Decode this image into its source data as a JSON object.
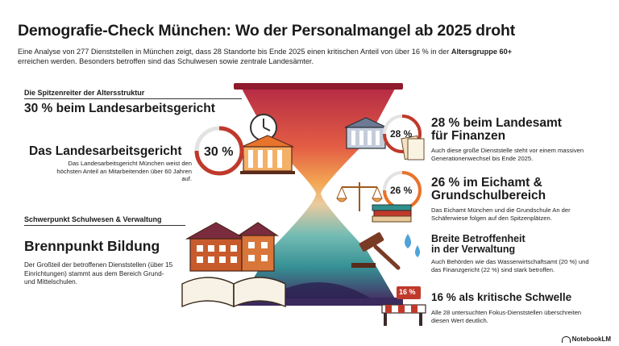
{
  "header": {
    "title": "Demografie-Check München: Wo der Personalmangel ab 2025 droht",
    "intro_line1": "Eine Analyse von 277 Dienststellen in München zeigt, dass 28 Standorte bis Ende 2025 einen kritischen Anteil von über 16 % in der",
    "intro_bold": "Altersgruppe 60+",
    "intro_line2": " erreichen werden. Besonders betroffen sind das Schulwesen sowie zentrale Landesämter."
  },
  "left_top": {
    "section_label": "Die Spitzenreiter der Altersstruktur",
    "headline": "30 % beim Landesarbeitsgericht",
    "name": "Das Landesarbeitsgericht",
    "desc": "Das Landesarbeitsgericht München weist den höchsten Anteil an Mitarbeitenden über 60 Jahren auf.",
    "badge": "30 %"
  },
  "left_bottom": {
    "section_label": "Schwerpunkt Schulwesen & Verwaltung",
    "headline": "Brennpunkt Bildung",
    "desc": "Der Großteil der betroffenen Dienststellen (über 15 Einrichtungen) stammt aus dem Bereich Grund- und Mittelschulen."
  },
  "right": {
    "item1": {
      "title_l1": "28 % beim Landesamt",
      "title_l2": "für Finanzen",
      "desc": "Auch diese große Dienststelle steht vor einem massiven Generationenwechsel bis Ende 2025.",
      "badge": "28 %"
    },
    "item2": {
      "title_l1": "26 % im Eichamt &",
      "title_l2": "Grundschulbereich",
      "desc": "Das Eichamt München und die Grundschule An der Schäferwiese folgen auf den Spitzenplätzen.",
      "badge": "26 %"
    },
    "item3": {
      "title_l1": "Breite Betroffenheit",
      "title_l2": "in der Verwaltung",
      "desc": "Auch Behörden wie das Wasserwirtschaftsamt (20 %) und das Finanzgericht (22 %) sind stark betroffen."
    },
    "item4": {
      "title": "16 % als kritische Schwelle",
      "desc": "Alle 28 untersuchten Fokus-Dienststellen überschreiten diesen Wert deutlich.",
      "sign": "16 %"
    }
  },
  "brand": "NotebookLM",
  "colors": {
    "accent_red": "#c0392b",
    "accent_orange": "#e8732c",
    "teal": "#2f8f8c",
    "purple": "#5b3b7a"
  }
}
